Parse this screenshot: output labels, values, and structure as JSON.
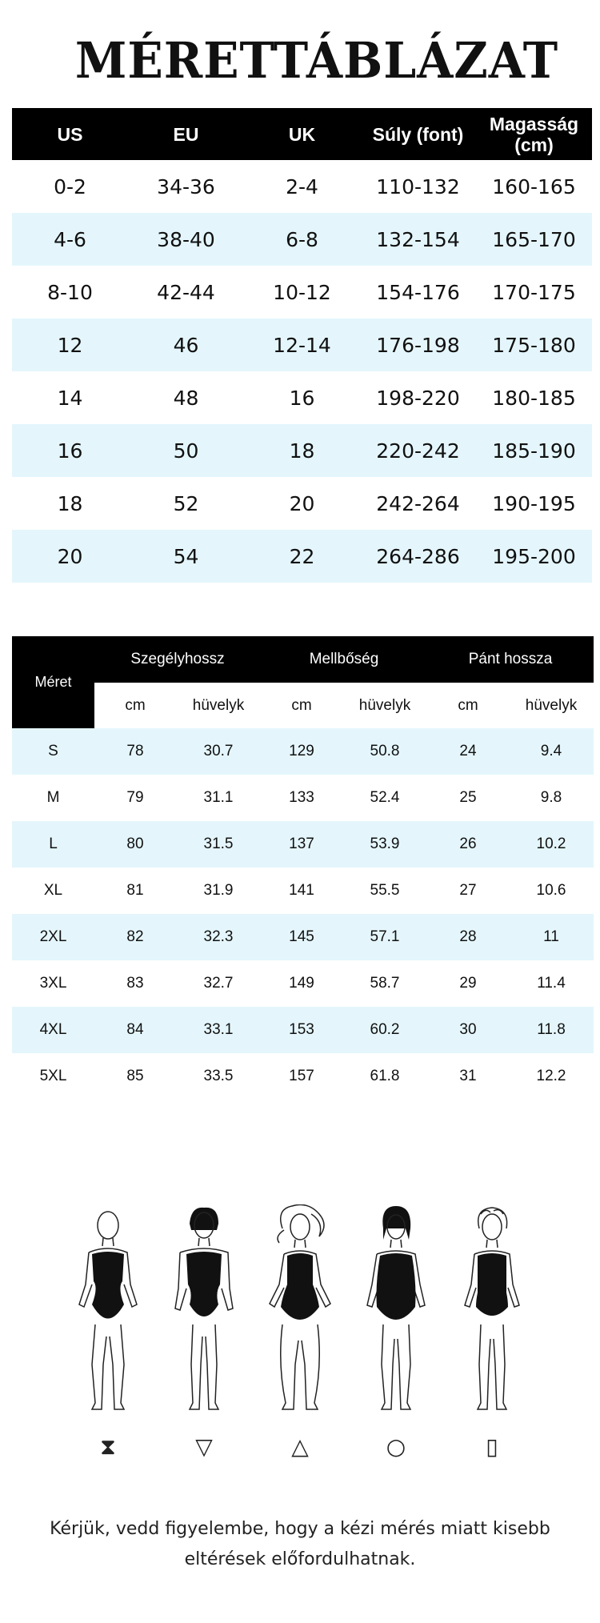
{
  "title": "MÉRETTÁBLÁZAT",
  "table1": {
    "headers": [
      "US",
      "EU",
      "UK",
      "Súly (font)",
      "Magasság (cm)"
    ],
    "rows": [
      [
        "0-2",
        "34-36",
        "2-4",
        "110-132",
        "160-165"
      ],
      [
        "4-6",
        "38-40",
        "6-8",
        "132-154",
        "165-170"
      ],
      [
        "8-10",
        "42-44",
        "10-12",
        "154-176",
        "170-175"
      ],
      [
        "12",
        "46",
        "12-14",
        "176-198",
        "175-180"
      ],
      [
        "14",
        "48",
        "16",
        "198-220",
        "180-185"
      ],
      [
        "16",
        "50",
        "18",
        "220-242",
        "185-190"
      ],
      [
        "18",
        "52",
        "20",
        "242-264",
        "190-195"
      ],
      [
        "20",
        "54",
        "22",
        "264-286",
        "195-200"
      ]
    ]
  },
  "table2": {
    "size_header": "Méret",
    "groups": [
      "Szegélyhossz",
      "Mellbőség",
      "Pánt hossza"
    ],
    "units": [
      "cm",
      "hüvelyk",
      "cm",
      "hüvelyk",
      "cm",
      "hüvelyk"
    ],
    "rows": [
      [
        "S",
        "78",
        "30.7",
        "129",
        "50.8",
        "24",
        "9.4"
      ],
      [
        "M",
        "79",
        "31.1",
        "133",
        "52.4",
        "25",
        "9.8"
      ],
      [
        "L",
        "80",
        "31.5",
        "137",
        "53.9",
        "26",
        "10.2"
      ],
      [
        "XL",
        "81",
        "31.9",
        "141",
        "55.5",
        "27",
        "10.6"
      ],
      [
        "2XL",
        "82",
        "32.3",
        "145",
        "57.1",
        "28",
        "11"
      ],
      [
        "3XL",
        "83",
        "32.7",
        "149",
        "58.7",
        "29",
        "11.4"
      ],
      [
        "4XL",
        "84",
        "33.1",
        "153",
        "60.2",
        "30",
        "11.8"
      ],
      [
        "5XL",
        "85",
        "33.5",
        "157",
        "61.8",
        "31",
        "12.2"
      ]
    ]
  },
  "body_shapes": [
    "⧗",
    "▽",
    "△",
    "○",
    "▯"
  ],
  "note": "Kérjük, vedd figyelembe, hogy a kézi mérés miatt kisebb eltérések előfordulhatnak.",
  "colors": {
    "header_bg": "#000000",
    "header_text": "#ffffff",
    "stripe": "#e4f6fc"
  },
  "icons": [
    "hourglass-shape-icon",
    "inverted-triangle-shape-icon",
    "triangle-shape-icon",
    "round-shape-icon",
    "rectangle-shape-icon"
  ]
}
